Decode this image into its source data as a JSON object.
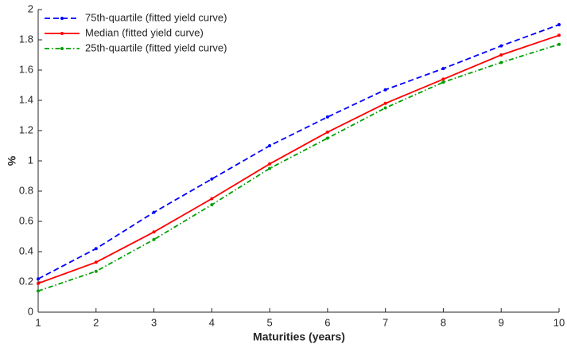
{
  "chart_data": {
    "type": "line",
    "x_label": "Maturities (years)",
    "y_label": "%",
    "x": [
      1,
      2,
      3,
      4,
      5,
      6,
      7,
      8,
      9,
      10
    ],
    "xlim": [
      1,
      10
    ],
    "xticks": [
      1,
      2,
      3,
      4,
      5,
      6,
      7,
      8,
      9,
      10
    ],
    "ylim": [
      0,
      2
    ],
    "yticks": [
      0,
      0.2,
      0.4,
      0.6,
      0.8,
      1,
      1.2,
      1.4,
      1.6,
      1.8,
      2
    ],
    "grid": false,
    "legend": "top-left",
    "series": [
      {
        "name": "75th-quartile (fitted yield curve)",
        "color": "#0000ff",
        "line_style": "dashed",
        "values": [
          0.22,
          0.42,
          0.66,
          0.88,
          1.1,
          1.29,
          1.47,
          1.61,
          1.76,
          1.9
        ]
      },
      {
        "name": "Median (fitted yield curve)",
        "color": "#ff0000",
        "line_style": "solid",
        "values": [
          0.19,
          0.33,
          0.53,
          0.75,
          0.98,
          1.19,
          1.38,
          1.54,
          1.7,
          1.83
        ]
      },
      {
        "name": "25th-quartile (fitted yield curve)",
        "color": "#00a000",
        "line_style": "dash-dot",
        "values": [
          0.14,
          0.27,
          0.48,
          0.71,
          0.95,
          1.15,
          1.35,
          1.52,
          1.65,
          1.77
        ]
      }
    ]
  }
}
